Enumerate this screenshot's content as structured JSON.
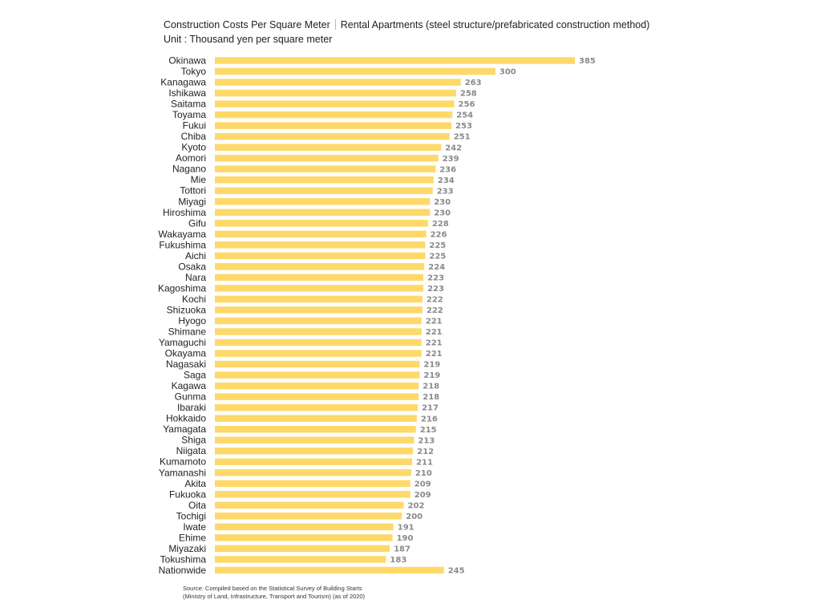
{
  "chart_data": {
    "type": "bar",
    "orientation": "horizontal",
    "title": "Construction Costs Per Square Meter",
    "subtitle": "Rental Apartments (steel structure/prefabricated construction method)",
    "unit": "Unit : Thousand yen per square meter",
    "xlabel": "",
    "ylabel": "",
    "xlim": [
      0,
      400
    ],
    "grid": false,
    "data_labels": true,
    "bar_color": "#fed96a",
    "label_color": "#8a8a8a",
    "categories": [
      "Okinawa",
      "Tokyo",
      "Kanagawa",
      "Ishikawa",
      "Saitama",
      "Toyama",
      "Fukui",
      "Chiba",
      "Kyoto",
      "Aomori",
      "Nagano",
      "Mie",
      "Tottori",
      "Miyagi",
      "Hiroshima",
      "Gifu",
      "Wakayama",
      "Fukushima",
      "Aichi",
      "Osaka",
      "Nara",
      "Kagoshima",
      "Kochi",
      "Shizuoka",
      "Hyogo",
      "Shimane",
      "Yamaguchi",
      "Okayama",
      "Nagasaki",
      "Saga",
      "Kagawa",
      "Gunma",
      "Ibaraki",
      "Hokkaido",
      "Yamagata",
      "Shiga",
      "Niigata",
      "Kumamoto",
      "Yamanashi",
      "Akita",
      "Fukuoka",
      "Oita",
      "Tochigi",
      "Iwate",
      "Ehime",
      "Miyazaki",
      "Tokushima",
      "Nationwide"
    ],
    "values": [
      385,
      300,
      263,
      258,
      256,
      254,
      253,
      251,
      242,
      239,
      236,
      234,
      233,
      230,
      230,
      228,
      226,
      225,
      225,
      224,
      223,
      223,
      222,
      222,
      221,
      221,
      221,
      221,
      219,
      219,
      218,
      218,
      217,
      216,
      215,
      213,
      212,
      211,
      210,
      209,
      209,
      202,
      200,
      191,
      190,
      187,
      183,
      245
    ]
  },
  "source": {
    "line1": "Source: Compiled based on the Statistical Survey of Building Starts",
    "line2": "(Ministry of Land, Infrastructure, Transport and Tourism) (as of 2020)"
  }
}
